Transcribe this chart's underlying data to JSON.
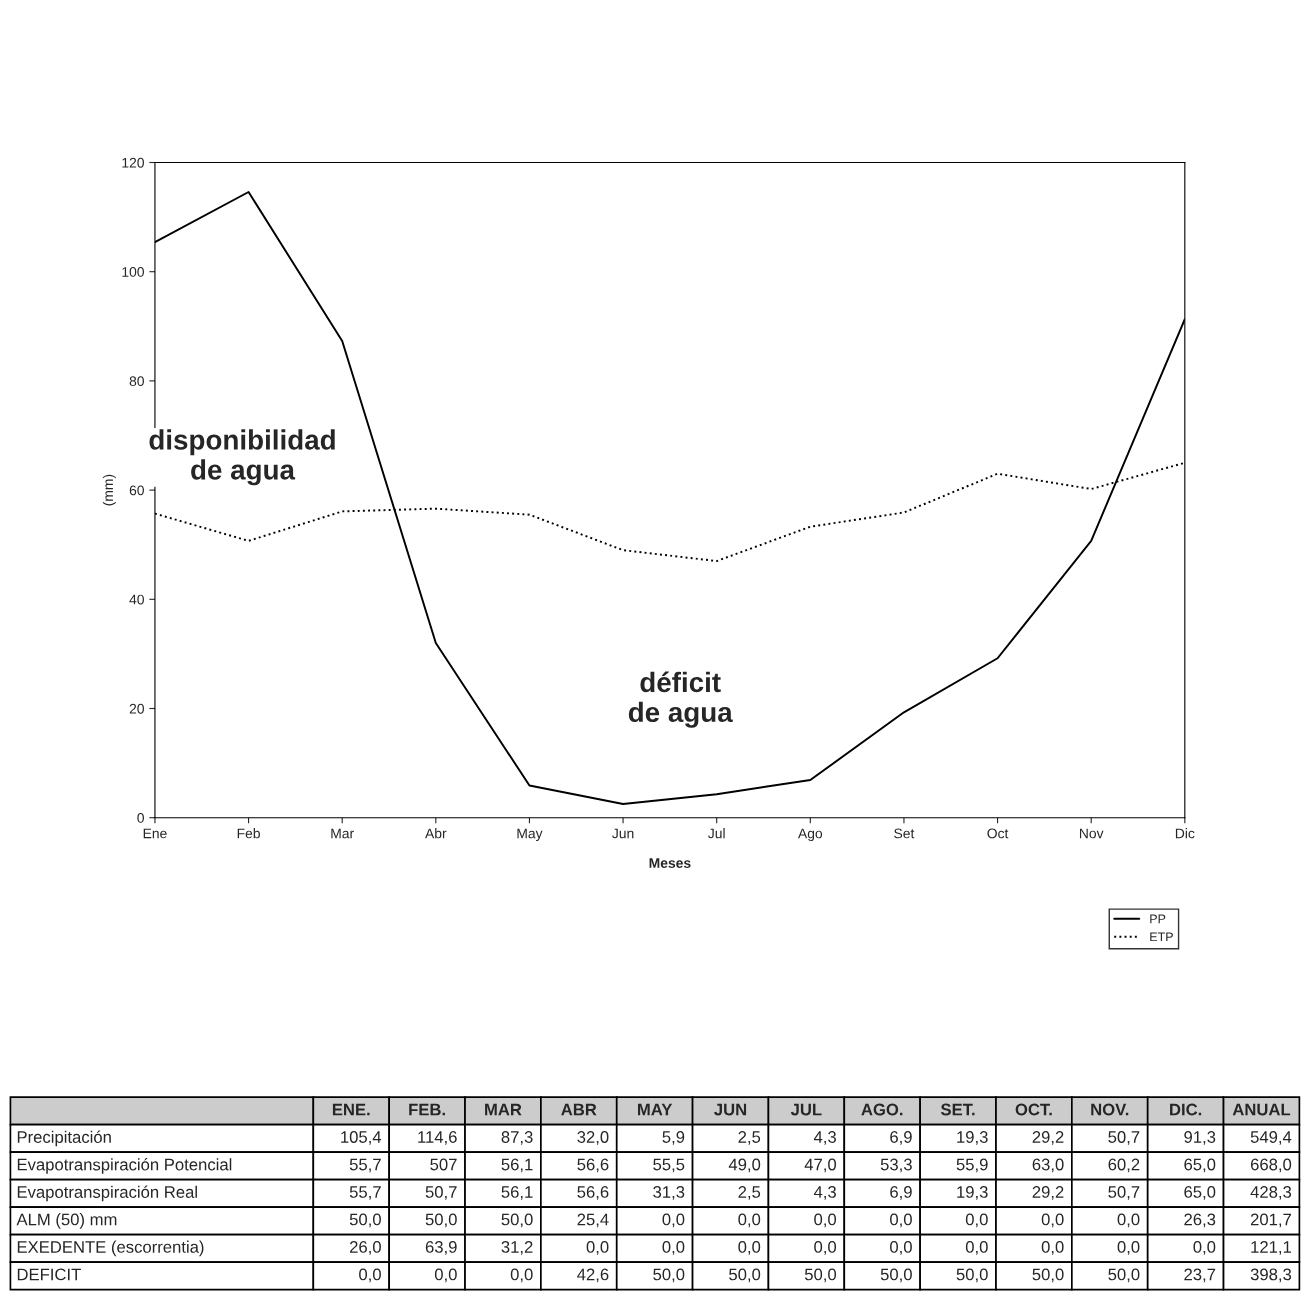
{
  "chart_data": [
    {
      "type": "line",
      "xlabel": "Meses",
      "ylabel": "(mm)",
      "categories": [
        "Ene",
        "Feb",
        "Mar",
        "Abr",
        "May",
        "Jun",
        "Jul",
        "Ago",
        "Set",
        "Oct",
        "Nov",
        "Dic"
      ],
      "series": [
        {
          "name": "PP",
          "color": "#000000",
          "line_style": "solid",
          "values": [
            105.4,
            114.6,
            87.3,
            32.0,
            5.9,
            2.5,
            4.3,
            6.9,
            19.3,
            29.2,
            50.7,
            91.3
          ]
        },
        {
          "name": "ETP",
          "color": "#000000",
          "line_style": "dotted",
          "values": [
            55.7,
            50.7,
            56.1,
            56.6,
            55.5,
            49.0,
            47.0,
            53.3,
            55.9,
            63.0,
            60.2,
            65.0
          ]
        }
      ],
      "ylim": [
        0,
        120
      ],
      "yticks": [
        0,
        20,
        40,
        60,
        80,
        100,
        120
      ],
      "grid": false,
      "legend": "bottom right",
      "marker": "none",
      "annotations": [
        "disponibilidad\nde agua",
        "déficit\nde agua"
      ]
    },
    {
      "type": "other",
      "categories": [
        "ENE.",
        "FEB.",
        "MAR",
        "ABR",
        "MAY",
        "JUN",
        "JUL",
        "AGO.",
        "SET.",
        "OCT.",
        "NOV.",
        "DIC.",
        "ANUAL"
      ],
      "series": [
        {
          "name": "Precipitación",
          "values": [
            105.4,
            114.6,
            87.3,
            32.0,
            5.9,
            2.5,
            4.3,
            6.9,
            19.3,
            29.2,
            50.7,
            91.3,
            549.4
          ],
          "value_labels": [
            "105,4",
            "114,6",
            "87,3",
            "32,0",
            "5,9",
            "2,5",
            "4,3",
            "6,9",
            "19,3",
            "29,2",
            "50,7",
            "91,3",
            "549,4"
          ]
        },
        {
          "name": "Evapotranspiración Potencial",
          "values": [
            55.7,
            507,
            56.1,
            56.6,
            55.5,
            49.0,
            47.0,
            53.3,
            55.9,
            63.0,
            60.2,
            65.0,
            668.0
          ],
          "value_labels": [
            "55,7",
            "507",
            "56,1",
            "56,6",
            "55,5",
            "49,0",
            "47,0",
            "53,3",
            "55,9",
            "63,0",
            "60,2",
            "65,0",
            "668,0"
          ]
        },
        {
          "name": "Evapotranspiración Real",
          "values": [
            55.7,
            50.7,
            56.1,
            56.6,
            31.3,
            2.5,
            4.3,
            6.9,
            19.3,
            29.2,
            50.7,
            65.0,
            428.3
          ],
          "value_labels": [
            "55,7",
            "50,7",
            "56,1",
            "56,6",
            "31,3",
            "2,5",
            "4,3",
            "6,9",
            "19,3",
            "29,2",
            "50,7",
            "65,0",
            "428,3"
          ]
        },
        {
          "name": "ALM (50) mm",
          "values": [
            50.0,
            50.0,
            50.0,
            25.4,
            0.0,
            0.0,
            0.0,
            0.0,
            0.0,
            0.0,
            0.0,
            26.3,
            201.7
          ],
          "value_labels": [
            "50,0",
            "50,0",
            "50,0",
            "25,4",
            "0,0",
            "0,0",
            "0,0",
            "0,0",
            "0,0",
            "0,0",
            "0,0",
            "26,3",
            "201,7"
          ]
        },
        {
          "name": "EXEDENTE (escorrentia)",
          "values": [
            26.0,
            63.9,
            31.2,
            0.0,
            0.0,
            0.0,
            0.0,
            0.0,
            0.0,
            0.0,
            0.0,
            0.0,
            121.1
          ],
          "value_labels": [
            "26,0",
            "63,9",
            "31,2",
            "0,0",
            "0,0",
            "0,0",
            "0,0",
            "0,0",
            "0,0",
            "0,0",
            "0,0",
            "0,0",
            "121,1"
          ]
        },
        {
          "name": "DEFICIT",
          "values": [
            0.0,
            0.0,
            0.0,
            42.6,
            50.0,
            50.0,
            50.0,
            50.0,
            50.0,
            50.0,
            50.0,
            23.7,
            398.3
          ],
          "value_labels": [
            "0,0",
            "0,0",
            "0,0",
            "42,6",
            "50,0",
            "50,0",
            "50,0",
            "50,0",
            "50,0",
            "50,0",
            "50,0",
            "23,7",
            "398,3"
          ]
        }
      ]
    }
  ]
}
